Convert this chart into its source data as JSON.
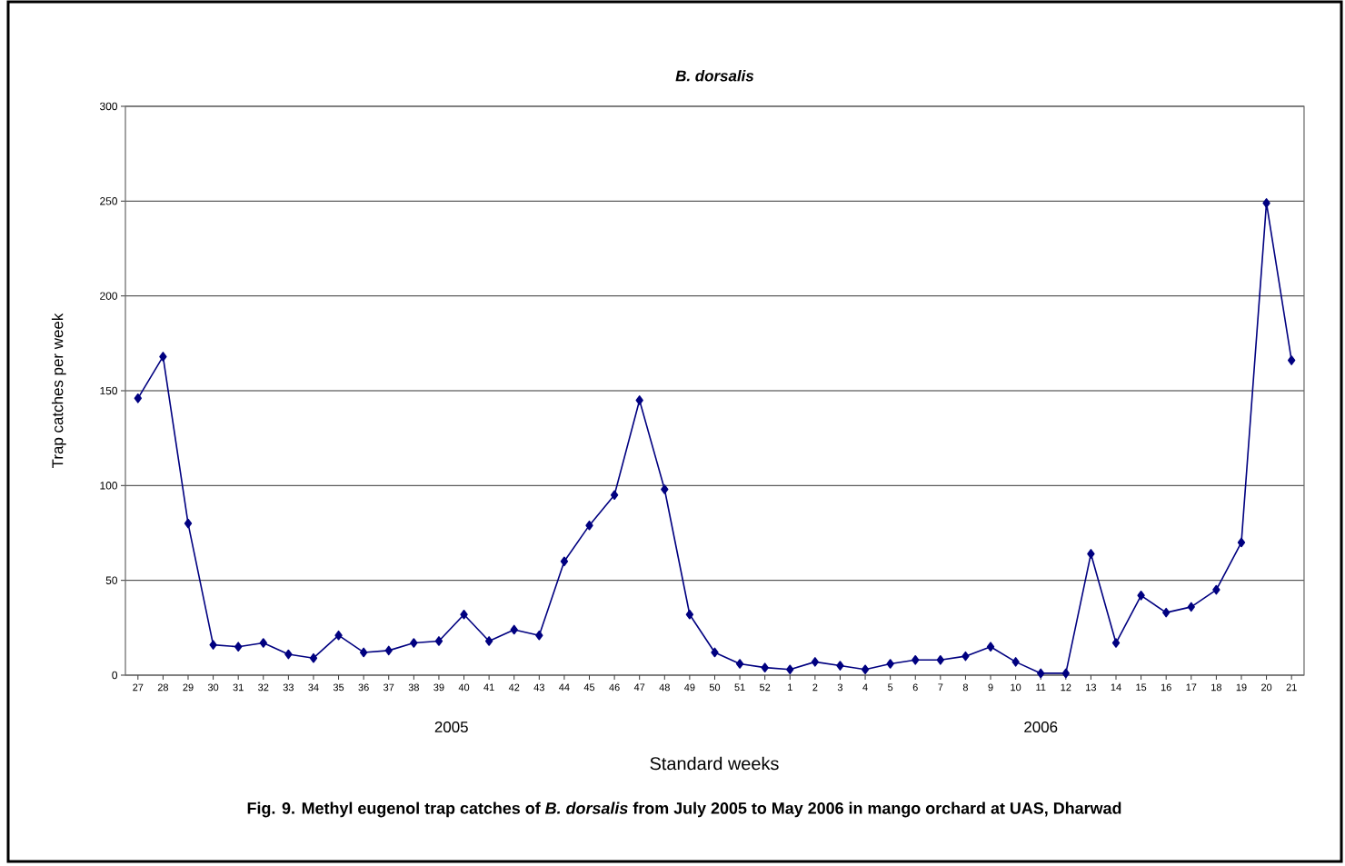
{
  "chart_data": {
    "type": "line",
    "title": "B. dorsalis",
    "xlabel": "Standard weeks",
    "ylabel": "Trap catches per week",
    "categories": [
      "27",
      "28",
      "29",
      "30",
      "31",
      "32",
      "33",
      "34",
      "35",
      "36",
      "37",
      "38",
      "39",
      "40",
      "41",
      "42",
      "43",
      "44",
      "45",
      "46",
      "47",
      "48",
      "49",
      "50",
      "51",
      "52",
      "1",
      "2",
      "3",
      "4",
      "5",
      "6",
      "7",
      "8",
      "9",
      "10",
      "11",
      "12",
      "13",
      "14",
      "15",
      "16",
      "17",
      "18",
      "19",
      "20",
      "21"
    ],
    "series": [
      {
        "color": "#000080",
        "values": [
          146,
          168,
          80,
          16,
          15,
          17,
          11,
          9,
          21,
          12,
          13,
          17,
          18,
          32,
          18,
          24,
          21,
          60,
          79,
          95,
          145,
          98,
          32,
          12,
          6,
          4,
          3,
          7,
          5,
          3,
          6,
          8,
          8,
          10,
          15,
          7,
          1,
          1,
          64,
          17,
          42,
          33,
          36,
          45,
          70,
          249,
          166
        ]
      }
    ],
    "ylim": [
      0,
      300
    ],
    "yticks": [
      0,
      50,
      100,
      150,
      200,
      250,
      300
    ],
    "grid": "y",
    "marker": "diamond",
    "line_style": "solid",
    "annotations": [
      "2005",
      "2006",
      "Fig. 9.  Methyl eugenol trap catches of *B. dorsalis* from July 2005 to May 2006 in mango orchard at UAS, Dharwad"
    ]
  }
}
